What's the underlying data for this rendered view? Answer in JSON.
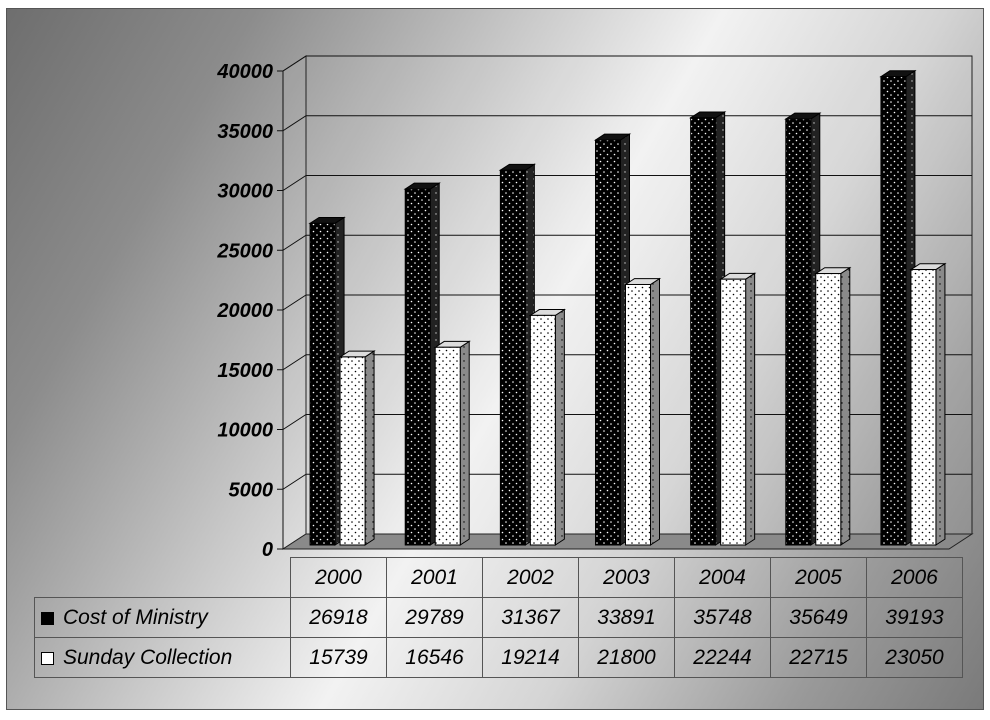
{
  "chart_data": {
    "type": "bar",
    "categories": [
      "2000",
      "2001",
      "2002",
      "2003",
      "2004",
      "2005",
      "2006"
    ],
    "series": [
      {
        "name": "Cost of Ministry",
        "color": "#000000",
        "pattern": "dotted-dark",
        "values": [
          26918,
          29789,
          31367,
          33891,
          35748,
          35649,
          39193
        ]
      },
      {
        "name": "Sunday Collection",
        "color": "#ffffff",
        "pattern": "dotted-light",
        "values": [
          15739,
          16546,
          19214,
          21800,
          22244,
          22715,
          23050
        ]
      }
    ],
    "title": "",
    "xlabel": "",
    "ylabel": "",
    "ylim": [
      0,
      40000
    ],
    "yticks": [
      "0",
      "5000",
      "10000",
      "15000",
      "20000",
      "25000",
      "30000",
      "35000",
      "40000"
    ],
    "grid": true,
    "style": "3d",
    "legend": "data-table"
  }
}
